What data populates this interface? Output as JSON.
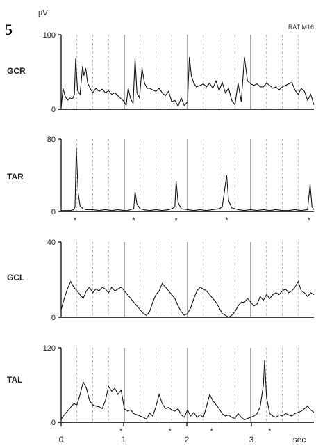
{
  "figure": {
    "panel_number": "5",
    "unit_label": "µV",
    "subject_label": "RAT M16",
    "time_unit": "sec",
    "marker": "*"
  },
  "chart_data": [
    {
      "type": "line",
      "name": "GCR",
      "ylim": [
        0,
        100
      ],
      "yticks": [
        "100",
        "0"
      ],
      "x": [
        0,
        0.03,
        0.06,
        0.1,
        0.14,
        0.18,
        0.21,
        0.23,
        0.26,
        0.3,
        0.34,
        0.36,
        0.39,
        0.42,
        0.46,
        0.5,
        0.55,
        0.6,
        0.65,
        0.7,
        0.75,
        0.8,
        0.85,
        0.9,
        0.95,
        1.0,
        1.03,
        1.06,
        1.1,
        1.14,
        1.17,
        1.2,
        1.24,
        1.28,
        1.32,
        1.36,
        1.4,
        1.45,
        1.5,
        1.55,
        1.6,
        1.65,
        1.7,
        1.75,
        1.8,
        1.85,
        1.9,
        1.95,
        2.0,
        2.03,
        2.06,
        2.1,
        2.14,
        2.2,
        2.25,
        2.3,
        2.35,
        2.4,
        2.45,
        2.5,
        2.55,
        2.6,
        2.65,
        2.7,
        2.75,
        2.8,
        2.85,
        2.9,
        2.95,
        3.0,
        3.05,
        3.1,
        3.15,
        3.2,
        3.25,
        3.3,
        3.35,
        3.4,
        3.45,
        3.5,
        3.55,
        3.6,
        3.65,
        3.7,
        3.75,
        3.8,
        3.85,
        3.9,
        3.95,
        4.0
      ],
      "values": [
        2,
        28,
        18,
        12,
        15,
        14,
        20,
        68,
        25,
        20,
        58,
        45,
        55,
        35,
        28,
        22,
        28,
        24,
        27,
        22,
        25,
        20,
        22,
        18,
        14,
        10,
        5,
        28,
        14,
        8,
        68,
        22,
        15,
        55,
        35,
        28,
        28,
        26,
        24,
        28,
        22,
        18,
        24,
        10,
        12,
        4,
        15,
        5,
        10,
        70,
        45,
        35,
        30,
        32,
        34,
        30,
        35,
        28,
        38,
        25,
        36,
        22,
        28,
        12,
        6,
        35,
        10,
        70,
        38,
        34,
        32,
        34,
        30,
        30,
        35,
        32,
        28,
        30,
        26,
        30,
        32,
        34,
        36,
        26,
        20,
        28,
        24,
        12,
        20,
        6
      ]
    },
    {
      "type": "line",
      "name": "TAR",
      "ylim": [
        0,
        80
      ],
      "yticks": [
        "80",
        "0"
      ],
      "x": [
        0,
        0.08,
        0.15,
        0.2,
        0.22,
        0.24,
        0.27,
        0.3,
        0.35,
        0.4,
        0.5,
        0.6,
        0.7,
        0.8,
        0.9,
        1.0,
        1.05,
        1.1,
        1.15,
        1.17,
        1.2,
        1.25,
        1.3,
        1.4,
        1.5,
        1.6,
        1.7,
        1.75,
        1.8,
        1.82,
        1.85,
        1.9,
        2.0,
        2.1,
        2.2,
        2.3,
        2.4,
        2.5,
        2.55,
        2.62,
        2.65,
        2.7,
        2.75,
        2.8,
        2.9,
        3.0,
        3.1,
        3.2,
        3.3,
        3.4,
        3.5,
        3.6,
        3.7,
        3.8,
        3.9,
        3.94,
        3.97,
        4.0
      ],
      "values": [
        1,
        1,
        1,
        2,
        5,
        70,
        20,
        6,
        3,
        2,
        2,
        1,
        2,
        1,
        2,
        1,
        1,
        2,
        3,
        22,
        8,
        3,
        2,
        1,
        2,
        1,
        2,
        3,
        5,
        34,
        10,
        3,
        2,
        1,
        2,
        1,
        2,
        3,
        5,
        40,
        12,
        4,
        3,
        2,
        1,
        2,
        1,
        2,
        1,
        2,
        1,
        1,
        2,
        1,
        2,
        30,
        5,
        2
      ]
    },
    {
      "type": "line",
      "name": "GCL",
      "ylim": [
        0,
        40
      ],
      "yticks": [
        "40",
        "0"
      ],
      "x": [
        0,
        0.05,
        0.1,
        0.15,
        0.2,
        0.25,
        0.3,
        0.35,
        0.4,
        0.45,
        0.5,
        0.55,
        0.6,
        0.65,
        0.7,
        0.75,
        0.8,
        0.85,
        0.9,
        0.95,
        1.0,
        1.05,
        1.1,
        1.15,
        1.2,
        1.25,
        1.3,
        1.35,
        1.4,
        1.45,
        1.5,
        1.55,
        1.6,
        1.65,
        1.7,
        1.75,
        1.8,
        1.85,
        1.9,
        1.95,
        2.0,
        2.05,
        2.1,
        2.15,
        2.2,
        2.25,
        2.3,
        2.35,
        2.4,
        2.45,
        2.5,
        2.55,
        2.6,
        2.65,
        2.7,
        2.75,
        2.8,
        2.85,
        2.9,
        2.95,
        3.0,
        3.05,
        3.1,
        3.15,
        3.2,
        3.25,
        3.3,
        3.35,
        3.4,
        3.45,
        3.5,
        3.55,
        3.6,
        3.65,
        3.7,
        3.75,
        3.8,
        3.85,
        3.9,
        3.95,
        4.0
      ],
      "values": [
        4,
        10,
        15,
        19,
        16,
        14,
        12,
        10,
        14,
        16,
        13,
        15,
        14,
        16,
        15,
        13,
        16,
        14,
        15,
        16,
        14,
        12,
        10,
        8,
        6,
        4,
        2,
        1,
        3,
        8,
        12,
        14,
        18,
        16,
        14,
        12,
        10,
        6,
        3,
        1,
        2,
        5,
        10,
        14,
        16,
        15,
        14,
        12,
        10,
        8,
        5,
        2,
        1,
        0,
        1,
        3,
        6,
        8,
        8,
        10,
        8,
        6,
        7,
        11,
        9,
        12,
        10,
        12,
        13,
        12,
        14,
        15,
        13,
        14,
        16,
        19,
        14,
        13,
        11,
        13,
        12
      ]
    },
    {
      "type": "line",
      "name": "TAL",
      "ylim": [
        0,
        120
      ],
      "yticks": [
        "120",
        "0"
      ],
      "xticks": [
        "0",
        "1",
        "2",
        "3"
      ],
      "x": [
        0,
        0.05,
        0.1,
        0.15,
        0.2,
        0.25,
        0.3,
        0.35,
        0.4,
        0.45,
        0.5,
        0.55,
        0.6,
        0.65,
        0.7,
        0.75,
        0.8,
        0.85,
        0.9,
        0.95,
        1.0,
        1.05,
        1.1,
        1.15,
        1.2,
        1.25,
        1.3,
        1.35,
        1.4,
        1.45,
        1.5,
        1.55,
        1.6,
        1.65,
        1.7,
        1.75,
        1.8,
        1.85,
        1.9,
        1.95,
        2.0,
        2.05,
        2.1,
        2.15,
        2.2,
        2.25,
        2.3,
        2.35,
        2.4,
        2.45,
        2.5,
        2.55,
        2.6,
        2.65,
        2.7,
        2.75,
        2.8,
        2.85,
        2.9,
        2.95,
        3.0,
        3.05,
        3.1,
        3.15,
        3.2,
        3.22,
        3.25,
        3.3,
        3.35,
        3.4,
        3.45,
        3.5,
        3.55,
        3.6,
        3.65,
        3.7,
        3.75,
        3.8,
        3.85,
        3.9,
        3.95,
        4.0
      ],
      "values": [
        5,
        12,
        18,
        24,
        30,
        28,
        45,
        65,
        55,
        35,
        28,
        26,
        25,
        22,
        35,
        58,
        50,
        55,
        45,
        52,
        22,
        18,
        20,
        14,
        12,
        10,
        8,
        5,
        15,
        10,
        25,
        45,
        30,
        22,
        24,
        20,
        18,
        22,
        12,
        8,
        20,
        10,
        16,
        8,
        12,
        8,
        25,
        45,
        35,
        28,
        22,
        14,
        10,
        12,
        8,
        6,
        14,
        8,
        4,
        6,
        8,
        10,
        14,
        25,
        60,
        100,
        40,
        14,
        10,
        8,
        12,
        10,
        14,
        12,
        10,
        14,
        16,
        18,
        22,
        26,
        20,
        16
      ]
    }
  ]
}
